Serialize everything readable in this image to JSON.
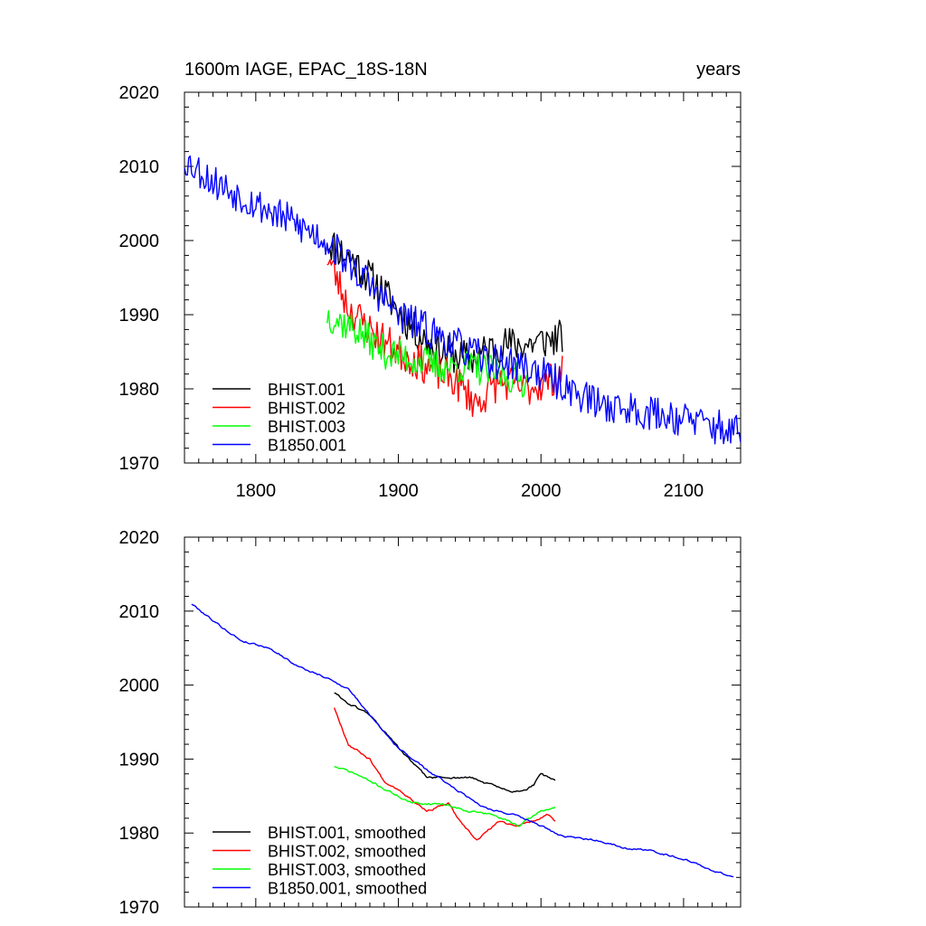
{
  "header": {
    "left_title": "1600m IAGE, EPAC_18S-18N",
    "right_title": "years"
  },
  "chart_data": [
    {
      "type": "line",
      "panel": "top",
      "xlim": [
        1750,
        2140
      ],
      "ylim": [
        1970,
        2020
      ],
      "xticks": [
        1800,
        1900,
        2000,
        2100
      ],
      "yticks": [
        1970,
        1980,
        1990,
        2000,
        2010,
        2020
      ],
      "show_x_tick_labels": true,
      "legend_placement": "bottom-left",
      "series": [
        {
          "name": "BHIST.001",
          "color": "#000000",
          "x_start": 1850,
          "x_end": 2015,
          "anchors": [
            [
              1850,
              2000
            ],
            [
              1870,
              1997
            ],
            [
              1890,
              1993
            ],
            [
              1910,
              1988
            ],
            [
              1930,
              1985
            ],
            [
              1950,
              1984
            ],
            [
              1970,
              1986
            ],
            [
              1990,
              1986
            ],
            [
              2015,
              1987
            ]
          ],
          "noise": 2.5,
          "seed": 11
        },
        {
          "name": "BHIST.002",
          "color": "#ff0000",
          "x_start": 1850,
          "x_end": 2015,
          "anchors": [
            [
              1850,
              1998
            ],
            [
              1865,
              1991
            ],
            [
              1880,
              1988
            ],
            [
              1900,
              1985
            ],
            [
              1920,
              1983
            ],
            [
              1940,
              1981
            ],
            [
              1955,
              1978
            ],
            [
              1970,
              1981
            ],
            [
              1990,
              1980
            ],
            [
              2015,
              1982
            ]
          ],
          "noise": 2.5,
          "seed": 23
        },
        {
          "name": "BHIST.003",
          "color": "#00ff00",
          "x_start": 1850,
          "x_end": 1990,
          "anchors": [
            [
              1850,
              1990
            ],
            [
              1870,
              1988
            ],
            [
              1890,
              1985
            ],
            [
              1910,
              1984
            ],
            [
              1930,
              1983
            ],
            [
              1950,
              1983
            ],
            [
              1970,
              1982
            ],
            [
              1990,
              1981
            ]
          ],
          "noise": 2.3,
          "seed": 37
        },
        {
          "name": "B1850.001",
          "color": "#0000ff",
          "x_start": 1750,
          "x_end": 2140,
          "anchors": [
            [
              1750,
              2011
            ],
            [
              1770,
              2008
            ],
            [
              1800,
              2005
            ],
            [
              1830,
              2002
            ],
            [
              1850,
              2000
            ],
            [
              1870,
              1996
            ],
            [
              1900,
              1990
            ],
            [
              1930,
              1987
            ],
            [
              1960,
              1984
            ],
            [
              1990,
              1983
            ],
            [
              2010,
              1981
            ],
            [
              2040,
              1978
            ],
            [
              2070,
              1977
            ],
            [
              2100,
              1976
            ],
            [
              2140,
              1974
            ]
          ],
          "noise": 2.4,
          "seed": 53
        }
      ]
    },
    {
      "type": "line",
      "panel": "bottom",
      "xlim": [
        1750,
        2140
      ],
      "ylim": [
        1970,
        2020
      ],
      "xticks": [
        1800,
        1900,
        2000,
        2100
      ],
      "yticks": [
        1970,
        1980,
        1990,
        2000,
        2010,
        2020
      ],
      "show_x_tick_labels": false,
      "legend_placement": "bottom-left",
      "series": [
        {
          "name": "BHIST.001, smoothed",
          "color": "#000000",
          "x_start": 1855,
          "x_end": 2010,
          "anchors": [
            [
              1855,
              1999
            ],
            [
              1865,
              1997.5
            ],
            [
              1880,
              1996
            ],
            [
              1900,
              1991.5
            ],
            [
              1920,
              1987.5
            ],
            [
              1935,
              1987.5
            ],
            [
              1950,
              1987.5
            ],
            [
              1965,
              1986.5
            ],
            [
              1980,
              1985.5
            ],
            [
              1990,
              1986
            ],
            [
              1995,
              1986.5
            ],
            [
              2000,
              1988
            ],
            [
              2010,
              1987
            ]
          ],
          "noise": 0.4,
          "seed": 61
        },
        {
          "name": "BHIST.002, smoothed",
          "color": "#ff0000",
          "x_start": 1855,
          "x_end": 2010,
          "anchors": [
            [
              1855,
              1997
            ],
            [
              1865,
              1992
            ],
            [
              1880,
              1990
            ],
            [
              1890,
              1987
            ],
            [
              1900,
              1986
            ],
            [
              1920,
              1983
            ],
            [
              1935,
              1984
            ],
            [
              1945,
              1981
            ],
            [
              1955,
              1979
            ],
            [
              1970,
              1981.5
            ],
            [
              1985,
              1981
            ],
            [
              2005,
              1982.5
            ],
            [
              2010,
              1981.5
            ]
          ],
          "noise": 0.4,
          "seed": 67
        },
        {
          "name": "BHIST.003, smoothed",
          "color": "#00ff00",
          "x_start": 1855,
          "x_end": 2010,
          "anchors": [
            [
              1855,
              1989
            ],
            [
              1870,
              1988
            ],
            [
              1890,
              1986
            ],
            [
              1910,
              1984
            ],
            [
              1930,
              1984
            ],
            [
              1950,
              1983
            ],
            [
              1965,
              1982.5
            ],
            [
              1985,
              1981
            ],
            [
              2000,
              1983
            ],
            [
              2010,
              1983.5
            ]
          ],
          "noise": 0.4,
          "seed": 71
        },
        {
          "name": "B1850.001, smoothed",
          "color": "#0000ff",
          "x_start": 1755,
          "x_end": 2135,
          "anchors": [
            [
              1755,
              2011
            ],
            [
              1775,
              2008
            ],
            [
              1790,
              2006
            ],
            [
              1810,
              2005
            ],
            [
              1830,
              2002.5
            ],
            [
              1855,
              2000.5
            ],
            [
              1865,
              1999.5
            ],
            [
              1880,
              1996
            ],
            [
              1900,
              1991.5
            ],
            [
              1920,
              1988.5
            ],
            [
              1940,
              1986
            ],
            [
              1960,
              1983.5
            ],
            [
              1980,
              1982.5
            ],
            [
              2000,
              1981
            ],
            [
              2015,
              1979.5
            ],
            [
              2040,
              1979
            ],
            [
              2060,
              1978
            ],
            [
              2080,
              1977.5
            ],
            [
              2100,
              1976.5
            ],
            [
              2120,
              1975
            ],
            [
              2135,
              1974
            ]
          ],
          "noise": 0.35,
          "seed": 79
        }
      ]
    }
  ]
}
